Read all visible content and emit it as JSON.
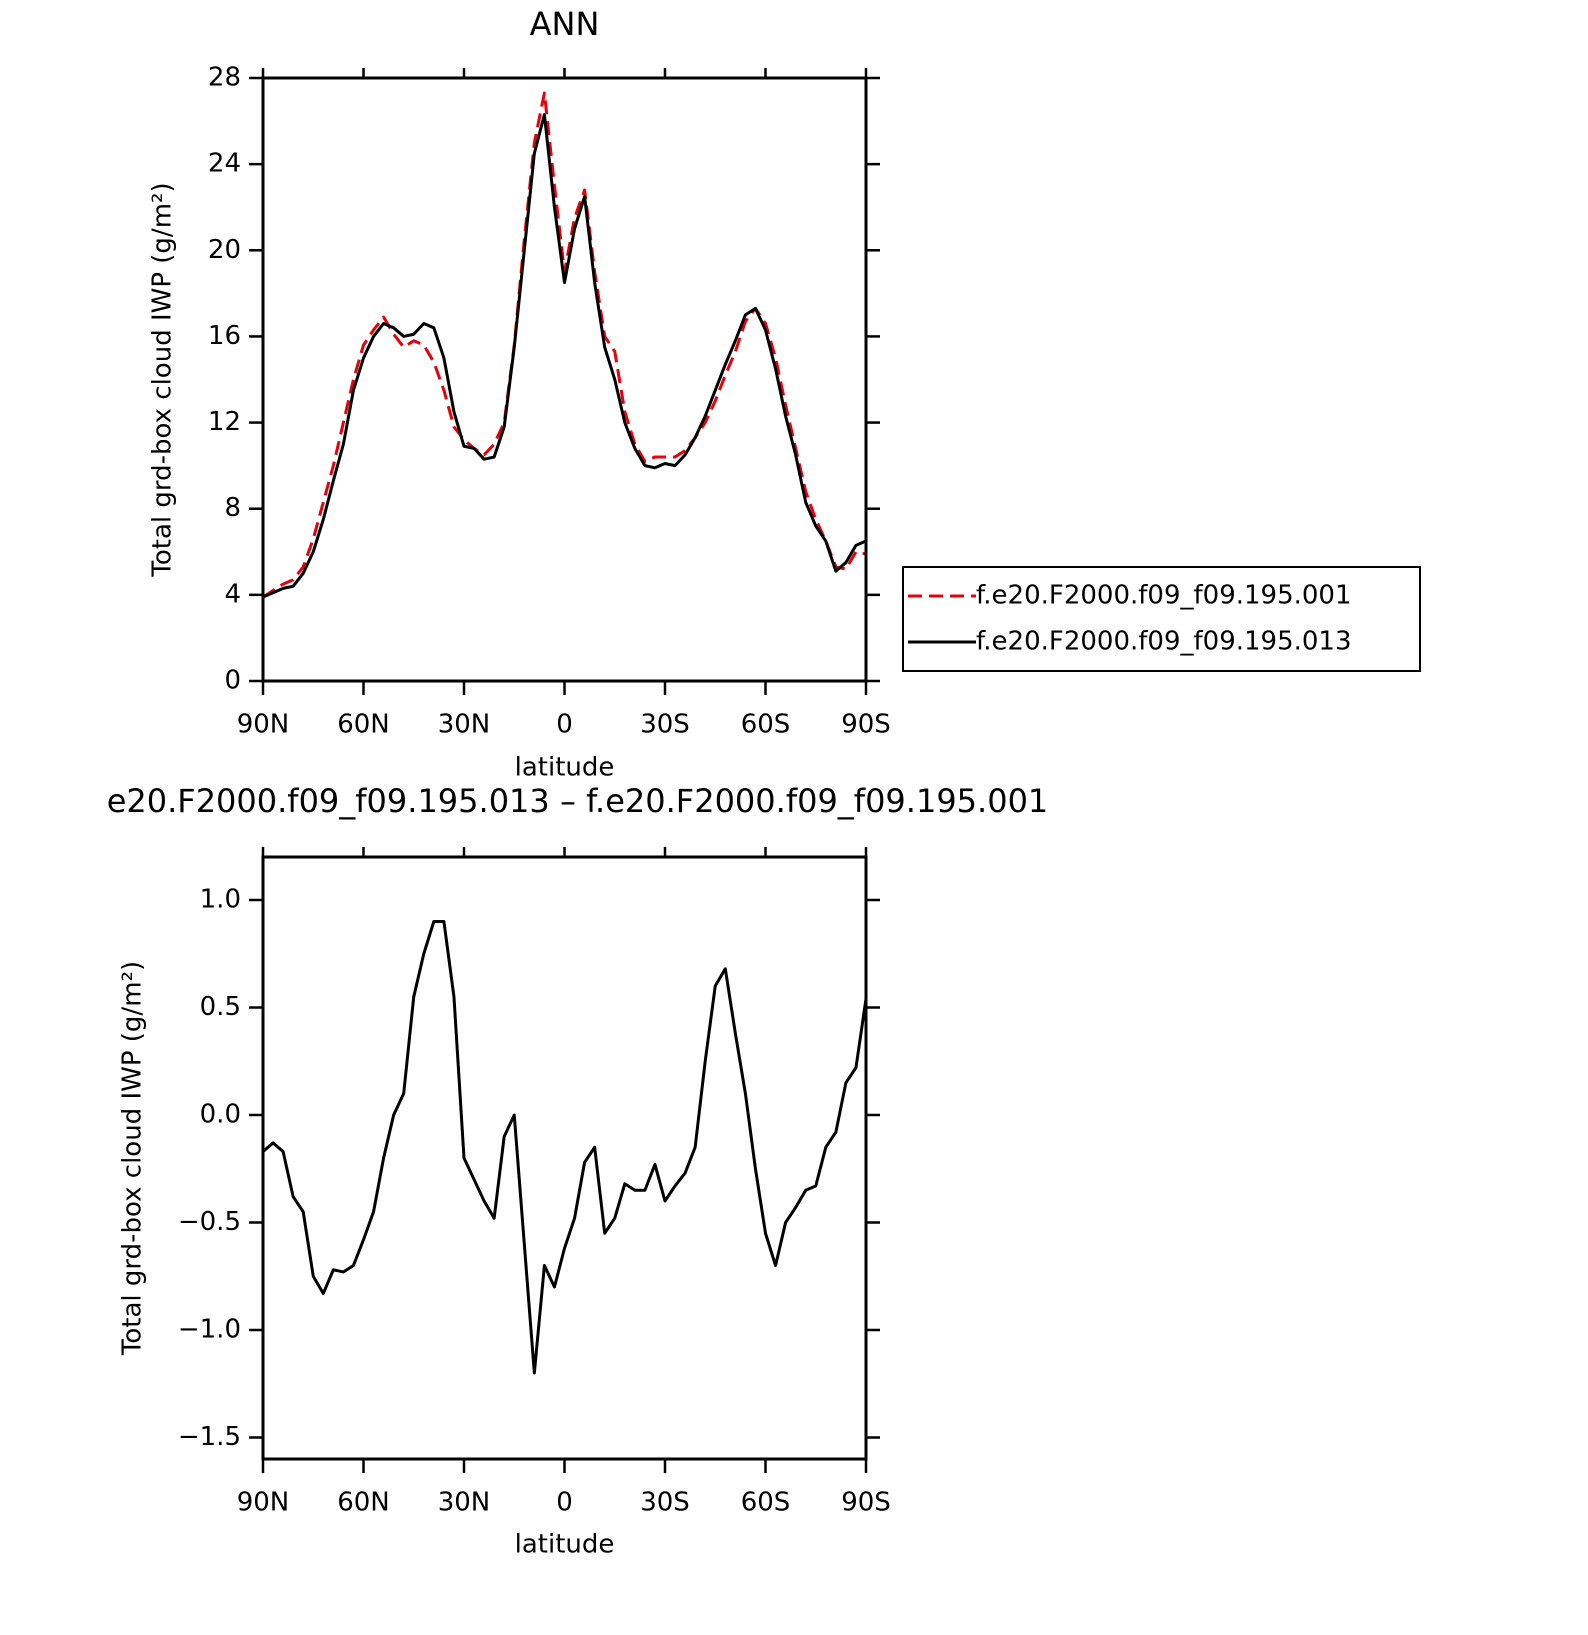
{
  "chart_data": [
    {
      "type": "line",
      "title": "ANN",
      "ylabel": "Total grd-box cloud IWP (g/m²)",
      "xlabel": "latitude",
      "x": [
        90,
        87,
        84,
        81,
        78,
        75,
        72,
        69,
        66,
        63,
        60,
        57,
        54,
        51,
        48,
        45,
        42,
        39,
        36,
        33,
        30,
        27,
        24,
        21,
        18,
        15,
        12,
        9,
        6,
        3,
        0,
        -3,
        -6,
        -9,
        -12,
        -15,
        -18,
        -21,
        -24,
        -27,
        -30,
        -33,
        -36,
        -39,
        -42,
        -45,
        -48,
        -51,
        -54,
        -57,
        -60,
        -63,
        -66,
        -69,
        -72,
        -75,
        -78,
        -81,
        -84,
        -87,
        -90
      ],
      "xlim": [
        90,
        -90
      ],
      "xticks": [
        {
          "value": 90,
          "label": "90N"
        },
        {
          "value": 60,
          "label": "60N"
        },
        {
          "value": 30,
          "label": "30N"
        },
        0,
        {
          "value": -30,
          "label": "30S"
        },
        {
          "value": -60,
          "label": "60S"
        },
        {
          "value": -90,
          "label": "90S"
        }
      ],
      "ylim": [
        0,
        28
      ],
      "yticks": [
        0,
        4,
        8,
        12,
        16,
        20,
        24,
        28
      ],
      "legend": "outside-right",
      "series": [
        {
          "name": "f.e20.F2000.f09_f09.195.001",
          "color": "#e8000b",
          "dash": true,
          "values": [
            3.9,
            4.2,
            4.5,
            4.7,
            5.3,
            6.6,
            8.3,
            10.0,
            12.0,
            14.0,
            15.6,
            16.3,
            16.9,
            16.1,
            15.5,
            15.8,
            15.6,
            14.8,
            13.5,
            11.8,
            11.2,
            10.8,
            10.5,
            11.0,
            12.0,
            15.6,
            20.5,
            25.0,
            27.3,
            23.0,
            19.0,
            21.5,
            22.8,
            19.0,
            16.0,
            15.3,
            12.5,
            11.0,
            10.2,
            10.4,
            10.4,
            10.4,
            10.7,
            11.3,
            12.0,
            13.0,
            14.2,
            15.3,
            16.7,
            17.3,
            16.6,
            15.0,
            12.8,
            10.8,
            8.8,
            7.5,
            6.5,
            5.3,
            5.2,
            6.0,
            5.9
          ]
        },
        {
          "name": "f.e20.F2000.f09_f09.195.013",
          "color": "#000000",
          "dash": false,
          "values": [
            3.9,
            4.1,
            4.3,
            4.4,
            5.0,
            6.0,
            7.5,
            9.3,
            11.0,
            13.5,
            15.0,
            16.0,
            16.6,
            16.4,
            16.0,
            16.1,
            16.6,
            16.4,
            15.0,
            12.5,
            10.9,
            10.8,
            10.3,
            10.4,
            11.8,
            15.5,
            20.0,
            24.5,
            26.3,
            22.0,
            18.5,
            21.0,
            22.5,
            18.5,
            15.5,
            14.0,
            12.0,
            10.8,
            10.0,
            9.9,
            10.1,
            10.0,
            10.5,
            11.3,
            12.3,
            13.5,
            14.7,
            15.8,
            17.0,
            17.3,
            16.3,
            14.5,
            12.3,
            10.5,
            8.3,
            7.2,
            6.5,
            5.1,
            5.5,
            6.3,
            6.5
          ]
        }
      ]
    },
    {
      "type": "line",
      "title": "e20.F2000.f09_f09.195.013 – f.e20.F2000.f09_f09.195.001",
      "ylabel": "Total grd-box cloud IWP (g/m²)",
      "xlabel": "latitude",
      "x": [
        90,
        87,
        84,
        81,
        78,
        75,
        72,
        69,
        66,
        63,
        60,
        57,
        54,
        51,
        48,
        45,
        42,
        39,
        36,
        33,
        30,
        27,
        24,
        21,
        18,
        15,
        12,
        9,
        6,
        3,
        0,
        -3,
        -6,
        -9,
        -12,
        -15,
        -18,
        -21,
        -24,
        -27,
        -30,
        -33,
        -36,
        -39,
        -42,
        -45,
        -48,
        -51,
        -54,
        -57,
        -60,
        -63,
        -66,
        -69,
        -72,
        -75,
        -78,
        -81,
        -84,
        -87,
        -90
      ],
      "xlim": [
        90,
        -90
      ],
      "xticks": [
        {
          "value": 90,
          "label": "90N"
        },
        {
          "value": 60,
          "label": "60N"
        },
        {
          "value": 30,
          "label": "30N"
        },
        0,
        {
          "value": -30,
          "label": "30S"
        },
        {
          "value": -60,
          "label": "60S"
        },
        {
          "value": -90,
          "label": "90S"
        }
      ],
      "ylim": [
        -1.6,
        1.2
      ],
      "yticks": [
        {
          "value": -1.5,
          "label": "−1.5"
        },
        {
          "value": -1.0,
          "label": "−1.0"
        },
        {
          "value": -0.5,
          "label": "−0.5"
        },
        {
          "value": 0,
          "label": "0.0"
        },
        0.5,
        {
          "value": 1.0,
          "label": "1.0"
        }
      ],
      "series": [
        {
          "color": "#000000",
          "dash": false,
          "values": [
            -0.17,
            -0.13,
            -0.17,
            -0.38,
            -0.45,
            -0.75,
            -0.83,
            -0.72,
            -0.73,
            -0.7,
            -0.58,
            -0.45,
            -0.2,
            0.0,
            0.1,
            0.55,
            0.75,
            0.9,
            0.9,
            0.55,
            -0.2,
            -0.3,
            -0.4,
            -0.48,
            -0.1,
            0.0,
            -0.6,
            -1.2,
            -0.7,
            -0.8,
            -0.62,
            -0.48,
            -0.22,
            -0.15,
            -0.55,
            -0.48,
            -0.32,
            -0.35,
            -0.35,
            -0.23,
            -0.4,
            -0.33,
            -0.27,
            -0.15,
            0.25,
            0.6,
            0.68,
            0.38,
            0.1,
            -0.25,
            -0.55,
            -0.7,
            -0.5,
            -0.43,
            -0.35,
            -0.33,
            -0.15,
            -0.08,
            0.15,
            0.22,
            0.54
          ]
        }
      ]
    }
  ]
}
